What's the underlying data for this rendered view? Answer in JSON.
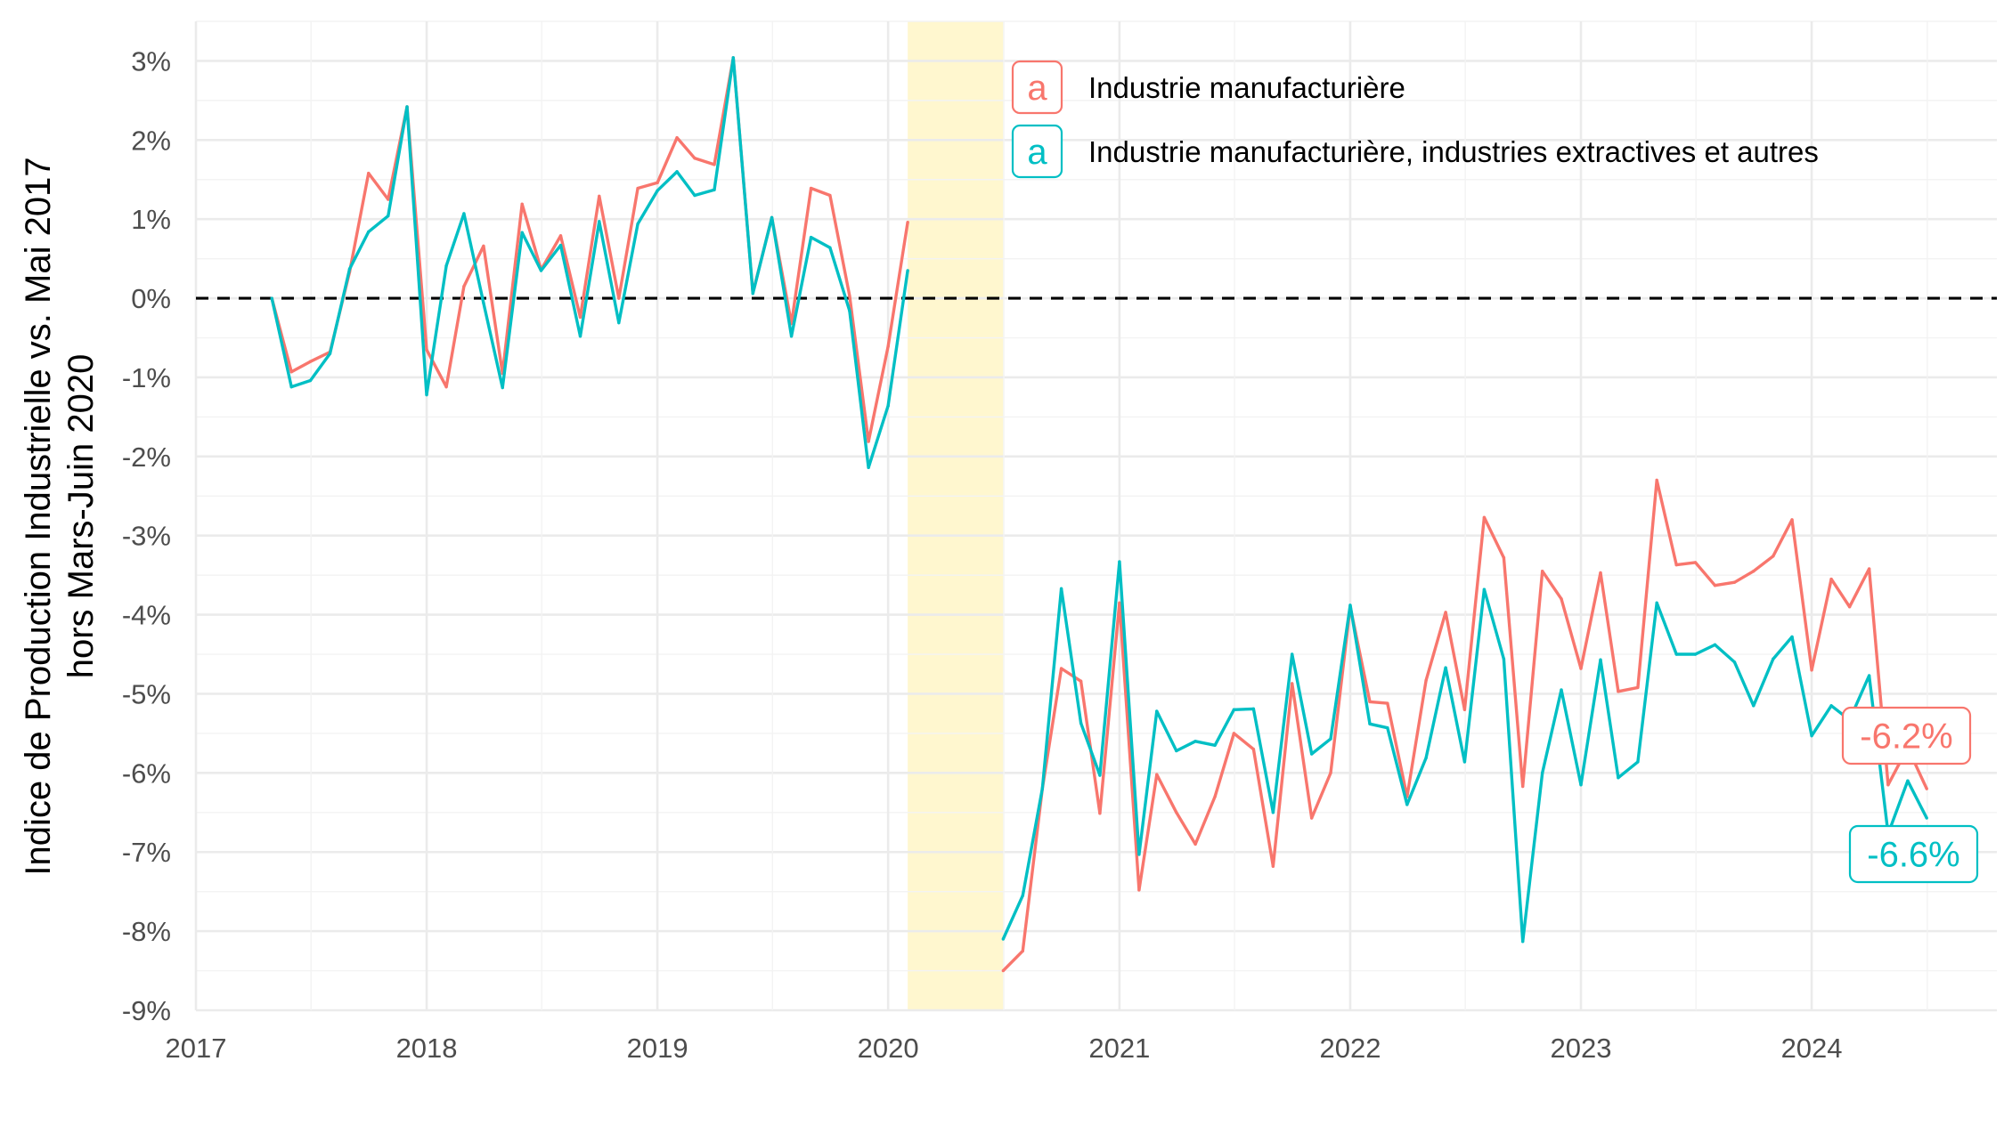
{
  "chart_data": {
    "type": "line",
    "title": "",
    "xlabel": "",
    "ylabel": [
      "Indice de Production Industrielle vs. Mai 2017",
      "hors Mars-Juin 2020"
    ],
    "xlim": [
      "2017-01-01",
      "2024-10-20"
    ],
    "ylim": [
      -9,
      3.5
    ],
    "y_ticks": [
      3,
      2,
      1,
      0,
      -1,
      -2,
      -3,
      -4,
      -5,
      -6,
      -7,
      -8,
      -9
    ],
    "y_tick_labels": [
      "3%",
      "2%",
      "1%",
      "0%",
      "-1%",
      "-2%",
      "-3%",
      "-4%",
      "-5%",
      "-6%",
      "-7%",
      "-8%",
      "-9%"
    ],
    "x_ticks": [
      "2017-01-01",
      "2018-01-01",
      "2019-01-01",
      "2020-01-01",
      "2021-01-01",
      "2022-01-01",
      "2023-01-01",
      "2024-01-01"
    ],
    "x_tick_labels": [
      "2017",
      "2018",
      "2019",
      "2020",
      "2021",
      "2022",
      "2023",
      "2024"
    ],
    "grid": true,
    "reference_line": {
      "y": 0,
      "style": "dashed",
      "color": "#000000"
    },
    "shaded_region": {
      "from": "2020-02-01",
      "to": "2020-07-01",
      "color": "#FFF7CF"
    },
    "legend": {
      "position": "top-right",
      "key_glyph": "a"
    },
    "series": [
      {
        "name": "Industrie manufacturière",
        "color": "#F8766D",
        "end_label": "-6.2%",
        "segments": [
          {
            "start": "2017-05",
            "values": [
              0.0,
              -0.93,
              -0.8,
              -0.68,
              0.33,
              1.58,
              1.25,
              2.42,
              -0.65,
              -1.12,
              0.15,
              0.66,
              -0.95,
              1.19,
              0.36,
              0.79,
              -0.24,
              1.29,
              0.0,
              1.39,
              1.46,
              2.03,
              1.77,
              1.69,
              3.04,
              0.07,
              1.02,
              -0.32,
              1.39,
              1.3,
              0.03,
              -1.81,
              -0.61,
              0.96
            ]
          },
          {
            "start": "2020-07",
            "values": [
              -8.5,
              -8.25,
              -6.2,
              -4.68,
              -4.84,
              -6.51,
              -3.85,
              -7.48,
              -6.02,
              -6.5,
              -6.9,
              -6.3,
              -5.5,
              -5.7,
              -7.18,
              -4.87,
              -6.57,
              -6.0,
              -3.9,
              -5.1,
              -5.12,
              -6.3,
              -4.83,
              -3.97,
              -5.2,
              -2.77,
              -3.28,
              -6.17,
              -3.45,
              -3.8,
              -4.68,
              -3.47,
              -4.97,
              -4.92,
              -2.3,
              -3.37,
              -3.34,
              -3.63,
              -3.59,
              -3.45,
              -3.26,
              -2.8,
              -4.7,
              -3.55,
              -3.9,
              -3.42,
              -6.15,
              -5.68,
              -6.2
            ]
          }
        ]
      },
      {
        "name": "Industrie manufacturière, industries extractives et autres",
        "color": "#00BFC4",
        "end_label": "-6.6%",
        "segments": [
          {
            "start": "2017-05",
            "values": [
              0.0,
              -1.12,
              -1.04,
              -0.7,
              0.37,
              0.84,
              1.04,
              2.42,
              -1.22,
              0.41,
              1.07,
              -0.06,
              -1.13,
              0.83,
              0.35,
              0.67,
              -0.48,
              0.97,
              -0.31,
              0.94,
              1.36,
              1.6,
              1.3,
              1.37,
              3.04,
              0.06,
              1.02,
              -0.48,
              0.77,
              0.64,
              -0.16,
              -2.14,
              -1.36,
              0.35
            ]
          },
          {
            "start": "2020-07",
            "values": [
              -8.1,
              -7.55,
              -6.2,
              -3.67,
              -5.37,
              -6.03,
              -3.33,
              -7.03,
              -5.22,
              -5.72,
              -5.6,
              -5.65,
              -5.2,
              -5.19,
              -6.5,
              -4.5,
              -5.76,
              -5.57,
              -3.88,
              -5.38,
              -5.43,
              -6.4,
              -5.81,
              -4.67,
              -5.86,
              -3.68,
              -4.56,
              -8.13,
              -6.0,
              -4.95,
              -6.15,
              -4.57,
              -6.06,
              -5.86,
              -3.85,
              -4.5,
              -4.5,
              -4.38,
              -4.6,
              -5.15,
              -4.56,
              -4.28,
              -5.53,
              -5.15,
              -5.33,
              -4.77,
              -6.77,
              -6.1,
              -6.57
            ]
          }
        ]
      }
    ]
  }
}
